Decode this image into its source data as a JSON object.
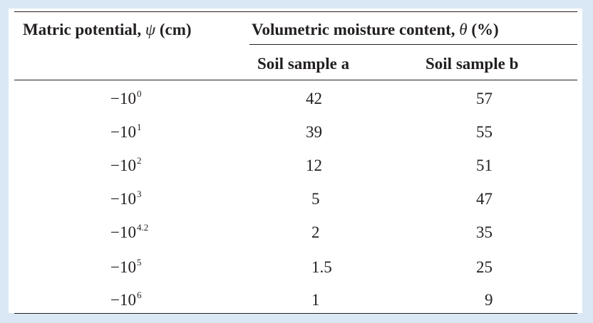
{
  "table": {
    "header": {
      "matric_prefix": "Matric potential, ",
      "matric_symbol": "ψ",
      "matric_unit": " (cm)",
      "moisture_prefix": "Volumetric moisture content, ",
      "moisture_symbol": "θ",
      "moisture_unit": " (%)",
      "sample_a": "Soil sample a",
      "sample_b": "Soil sample b"
    },
    "rows": [
      {
        "base": "−10",
        "exp": "0",
        "a": "42",
        "b": "57"
      },
      {
        "base": "−10",
        "exp": "1",
        "a": "39",
        "b": "55"
      },
      {
        "base": "−10",
        "exp": "2",
        "a": "12",
        "b": "51"
      },
      {
        "base": "−10",
        "exp": "3",
        "a": "5",
        "b": "47"
      },
      {
        "base": "−10",
        "exp": "4.2",
        "a": "2",
        "b": "35"
      },
      {
        "base": "−10",
        "exp": "5",
        "a": "1.5",
        "b": "25"
      },
      {
        "base": "−10",
        "exp": "6",
        "a": "1",
        "b": "9"
      }
    ]
  },
  "colors": {
    "background": "#d9e8f4",
    "table_background": "#ffffff",
    "text": "#231f20"
  }
}
